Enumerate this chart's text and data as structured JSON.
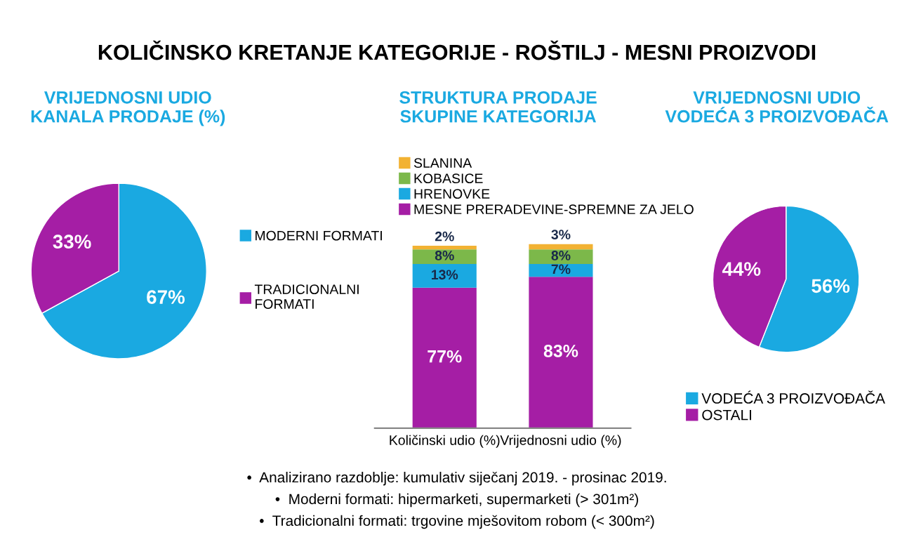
{
  "chart_data": [
    {
      "type": "pie",
      "title": "KOLIČINSKO KRETANJE KATEGORIJE - ROŠTILJ - MESNI PROIZVODI",
      "subtitle": "VRIJEDNOSNI UDIO\nKANALA PRODAJE (%)",
      "categories": [
        "MODERNI FORMATI",
        "TRADICIONALNI\nFORMATI"
      ],
      "values": [
        67,
        33
      ],
      "colors": [
        "#1aa9e1",
        "#a51ea5"
      ],
      "value_labels": [
        "67%",
        "33%"
      ],
      "legend": "right"
    },
    {
      "type": "bar",
      "title": "STRUKTURA PRODAJE\nSKUPINE KATEGORIJA",
      "categories": [
        "Količinski udio (%)",
        "Vrijednosni udio (%)"
      ],
      "stacked": true,
      "legend": "top",
      "series": [
        {
          "name": "MESNE PRERADEVINE-SPREMNE ZA JELO",
          "color": "#a51ea5",
          "values": [
            77,
            83
          ],
          "value_labels": [
            "77%",
            "83%"
          ]
        },
        {
          "name": "HRENOVKE",
          "color": "#1aa9e1",
          "values": [
            13,
            7
          ],
          "value_labels": [
            "13%",
            "7%"
          ]
        },
        {
          "name": "KOBASICE",
          "color": "#7cb84a",
          "values": [
            8,
            8
          ],
          "value_labels": [
            "8%",
            "8%"
          ]
        },
        {
          "name": "SLANINA",
          "color": "#f2b233",
          "values": [
            2,
            3
          ],
          "value_labels": [
            "2%",
            "3%"
          ]
        }
      ],
      "annotations": [
        "•  Analizirano razdoblje: kumulativ siječanj 2019. - prosinac 2019.",
        "•  Moderni formati: hipermarketi, supermarketi (> 301m²)",
        "•  Tradicionalni formati: trgovine mješovitom robom (< 300m²)"
      ]
    },
    {
      "type": "pie",
      "title": "VRIJEDNOSNI UDIO\nVODEĆA 3 PROIZVOĐAČA",
      "categories": [
        "VODEĆA 3 PROIZVOĐAČA",
        "OSTALI"
      ],
      "values": [
        56,
        44
      ],
      "colors": [
        "#1aa9e1",
        "#a51ea5"
      ],
      "value_labels": [
        "56%",
        "44%"
      ],
      "legend": "bottom"
    }
  ]
}
